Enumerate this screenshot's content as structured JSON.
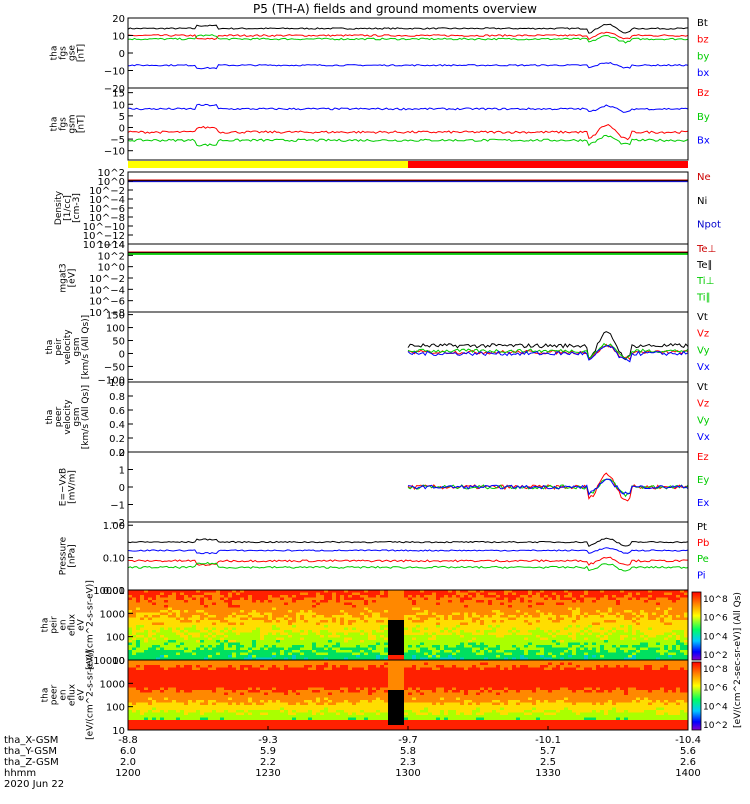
{
  "title": "P5 (TH-A) fields and ground moments overview",
  "date_label": "2020 Jun 22",
  "x_axis": {
    "hhmm": [
      "1200",
      "1230",
      "1300",
      "1330",
      "1400"
    ],
    "rows": [
      {
        "label": "tha_X-GSM",
        "values": [
          "-8.8",
          "-9.3",
          "-9.7",
          "-10.1",
          "-10.4"
        ]
      },
      {
        "label": "tha_Y-GSM",
        "values": [
          "6.0",
          "5.9",
          "5.8",
          "5.7",
          "5.6"
        ]
      },
      {
        "label": "tha_Z-GSM",
        "values": [
          "2.0",
          "2.2",
          "2.3",
          "2.5",
          "2.6"
        ]
      },
      {
        "label": "hhmm",
        "values": [
          "1200",
          "1230",
          "1300",
          "1330",
          "1400"
        ]
      }
    ]
  },
  "colorbar": {
    "label": "[eV/(cm^2-sec-sr-eV)] (All Qs)",
    "ticks": [
      "10^8",
      "10^6",
      "10^4",
      "10^2"
    ]
  },
  "mode_bar": {
    "yellow_until": 0.5,
    "colors": [
      "#ffff00",
      "#ff0000"
    ]
  },
  "chart_data": [
    {
      "type": "line",
      "id": "fgs",
      "ylabel": [
        "tha",
        "fgs",
        "gse",
        "[nT]"
      ],
      "ylim": [
        -20,
        20
      ],
      "ticks": [
        "20",
        "10",
        "0",
        "−10",
        "−20"
      ],
      "tick_values": [
        20,
        10,
        0,
        -10,
        -20
      ],
      "series": [
        {
          "name": "Bt",
          "color": "#000000",
          "base": 14,
          "noise": 0.4
        },
        {
          "name": "bz",
          "color": "#ff0000",
          "base": 10,
          "noise": 0.5
        },
        {
          "name": "by",
          "color": "#00cc00",
          "base": 8,
          "noise": 0.5
        },
        {
          "name": "bx",
          "color": "#0000ff",
          "base": -7,
          "noise": 0.4
        }
      ]
    },
    {
      "type": "line",
      "id": "fgs_gsm",
      "ylabel": [
        "tha",
        "fgs",
        "gsm",
        "[nT]"
      ],
      "ylim": [
        -14,
        17
      ],
      "ticks": [
        "15",
        "10",
        "5",
        "0",
        "−5",
        "−10"
      ],
      "tick_values": [
        15,
        10,
        5,
        0,
        -5,
        -10
      ],
      "series": [
        {
          "name": "Bz",
          "color": "#ff0000",
          "base": -2,
          "noise": 0.5
        },
        {
          "name": "By",
          "color": "#00cc00",
          "base": -5.5,
          "noise": 0.5
        },
        {
          "name": "Bx",
          "color": "#0000ff",
          "base": 8,
          "noise": 0.4
        }
      ]
    },
    {
      "type": "log",
      "id": "density",
      "ylabel": [
        "Density",
        "[1/cc]",
        "[cm-3]"
      ],
      "ticks": [
        "10^2",
        "10^0",
        "10^−2",
        "10^−4",
        "10^−6",
        "10^−8",
        "10^−10",
        "10^−12",
        "10^−14"
      ],
      "series": [
        {
          "name": "Ne",
          "color": "#cc0000"
        },
        {
          "name": "Ni",
          "color": "#000000"
        },
        {
          "name": "Npot",
          "color": "#0000cc"
        }
      ]
    },
    {
      "type": "log",
      "id": "temperature",
      "ylabel": [
        "mgat3",
        "[eV]"
      ],
      "ticks": [
        "10^4",
        "10^2",
        "10^0",
        "10^−2",
        "10^−4",
        "10^−6",
        "10^−8"
      ],
      "series": [
        {
          "name": "Te⊥",
          "color": "#cc0000"
        },
        {
          "name": "Te∥",
          "color": "#000000"
        },
        {
          "name": "Ti⊥",
          "color": "#00cc00"
        },
        {
          "name": "Ti∥",
          "color": "#00cc00"
        }
      ]
    },
    {
      "type": "line",
      "id": "peir_vel",
      "ylabel": [
        "tha",
        "peir",
        "velocity",
        "gsm",
        "[km/s (All Qs)]"
      ],
      "ylim": [
        -110,
        160
      ],
      "ticks": [
        "150",
        "100",
        "50",
        "0",
        "−50",
        "−100"
      ],
      "tick_values": [
        150,
        100,
        50,
        0,
        -50,
        -100
      ],
      "start": 0.5,
      "series": [
        {
          "name": "Vt",
          "color": "#000000",
          "base": 30,
          "noise": 8
        },
        {
          "name": "Vz",
          "color": "#ff0000",
          "base": 5,
          "noise": 7
        },
        {
          "name": "Vy",
          "color": "#00cc00",
          "base": 10,
          "noise": 7
        },
        {
          "name": "Vx",
          "color": "#0000ff",
          "base": 0,
          "noise": 8
        }
      ]
    },
    {
      "type": "empty",
      "id": "peer_vel",
      "ylabel": [
        "tha",
        "peer",
        "velocity",
        "gsm",
        "[km/s (All Qs)]"
      ],
      "ticks": [
        "1.0",
        "0.8",
        "0.6",
        "0.4",
        "0.2",
        "0.0"
      ],
      "series": [
        {
          "name": "Vt",
          "color": "#000000"
        },
        {
          "name": "Vz",
          "color": "#ff0000"
        },
        {
          "name": "Vy",
          "color": "#00cc00"
        },
        {
          "name": "Vx",
          "color": "#0000ff"
        }
      ]
    },
    {
      "type": "line",
      "id": "efield",
      "ylabel": [
        "E=−VxB",
        "[mV/m]"
      ],
      "ylim": [
        -2,
        2
      ],
      "ticks": [
        "2",
        "1",
        "0",
        "−1",
        "−2"
      ],
      "tick_values": [
        2,
        1,
        0,
        -1,
        -2
      ],
      "start": 0.5,
      "series": [
        {
          "name": "Ez",
          "color": "#ff0000",
          "base": 0,
          "noise": 0.12
        },
        {
          "name": "Ey",
          "color": "#00cc00",
          "base": 0,
          "noise": 0.12
        },
        {
          "name": "Ex",
          "color": "#0000ff",
          "base": 0,
          "noise": 0.1
        }
      ]
    },
    {
      "type": "line",
      "id": "pressure",
      "ylabel": [
        "Pressure",
        "[nPa]"
      ],
      "ylim": [
        -2,
        0.1
      ],
      "log": true,
      "ticks": [
        "1.00",
        "0.10",
        "0.01"
      ],
      "tick_values": [
        0,
        -1,
        -2
      ],
      "series": [
        {
          "name": "Pt",
          "color": "#000000",
          "base": -0.52,
          "noise": 0.02
        },
        {
          "name": "Pb",
          "color": "#ff0000",
          "base": -1.1,
          "noise": 0.03
        },
        {
          "name": "Pe",
          "color": "#00cc00",
          "base": -1.3,
          "noise": 0.03
        },
        {
          "name": "Pi",
          "color": "#0000ff",
          "base": -0.78,
          "noise": 0.02
        }
      ]
    },
    {
      "type": "spectrogram",
      "id": "peir_en",
      "ylabel": [
        "tha",
        "peir",
        "en",
        "eflux",
        "eV",
        "[eV/(cm^2-s-sr-eV)]"
      ],
      "ticks": [
        "10000",
        "1000",
        "100",
        "10"
      ]
    },
    {
      "type": "spectrogram",
      "id": "peer_en",
      "ylabel": [
        "tha",
        "peer",
        "en",
        "eflux",
        "eV",
        "[eV/(cm^2-s-sr-eV)]"
      ],
      "ticks": [
        "10000",
        "1000",
        "100",
        "10"
      ]
    }
  ]
}
